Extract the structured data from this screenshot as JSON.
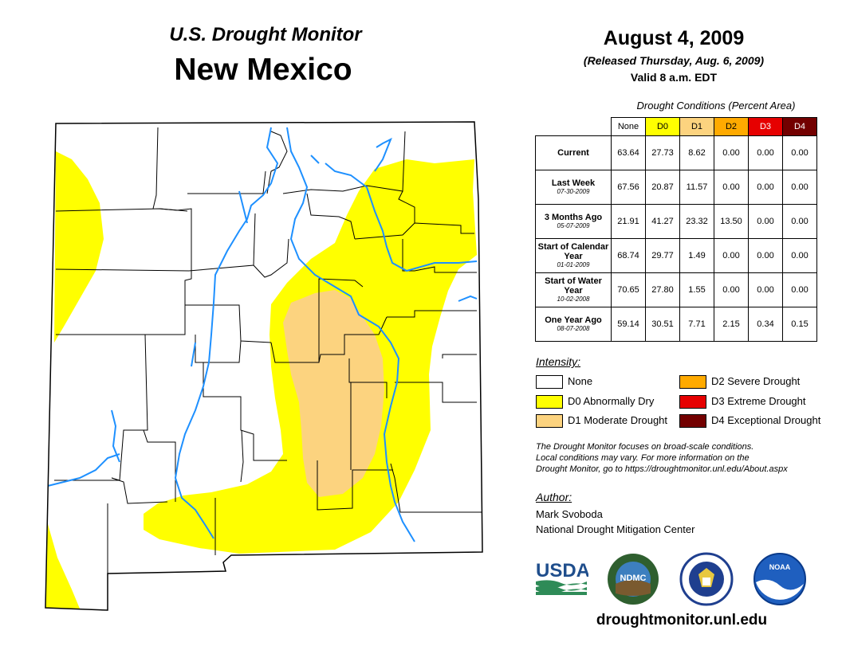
{
  "header": {
    "subtitle": "U.S. Drought Monitor",
    "state": "New Mexico",
    "date": "August 4, 2009",
    "released": "(Released Thursday, Aug. 6, 2009)",
    "valid": "Valid 8 a.m. EDT"
  },
  "table": {
    "title": "Drought Conditions (Percent Area)",
    "columns": [
      "None",
      "D0",
      "D1",
      "D2",
      "D3",
      "D4"
    ],
    "rows": [
      {
        "label": "Current",
        "date": "",
        "values": [
          "63.64",
          "27.73",
          "8.62",
          "0.00",
          "0.00",
          "0.00"
        ]
      },
      {
        "label": "Last Week",
        "date": "07-30-2009",
        "values": [
          "67.56",
          "20.87",
          "11.57",
          "0.00",
          "0.00",
          "0.00"
        ]
      },
      {
        "label": "3 Months Ago",
        "date": "05-07-2009",
        "values": [
          "21.91",
          "41.27",
          "23.32",
          "13.50",
          "0.00",
          "0.00"
        ]
      },
      {
        "label": "Start of Calendar Year",
        "date": "01-01-2009",
        "values": [
          "68.74",
          "29.77",
          "1.49",
          "0.00",
          "0.00",
          "0.00"
        ]
      },
      {
        "label": "Start of Water Year",
        "date": "10-02-2008",
        "values": [
          "70.65",
          "27.80",
          "1.55",
          "0.00",
          "0.00",
          "0.00"
        ]
      },
      {
        "label": "One Year Ago",
        "date": "08-07-2008",
        "values": [
          "59.14",
          "30.51",
          "7.71",
          "2.15",
          "0.34",
          "0.15"
        ]
      }
    ]
  },
  "legend": {
    "title": "Intensity:",
    "items": [
      {
        "label": "None",
        "color": "#ffffff"
      },
      {
        "label": "D0 Abnormally Dry",
        "color": "#ffff00"
      },
      {
        "label": "D1 Moderate Drought",
        "color": "#fcd37f"
      },
      {
        "label": "D2 Severe Drought",
        "color": "#ffaa00"
      },
      {
        "label": "D3 Extreme Drought",
        "color": "#e60000"
      },
      {
        "label": "D4 Exceptional Drought",
        "color": "#730000"
      }
    ]
  },
  "note": {
    "line1": "The Drought Monitor focuses on broad-scale conditions.",
    "line2": "Local conditions may vary. For more information on the",
    "line3": "Drought Monitor, go to https://droughtmonitor.unl.edu/About.aspx"
  },
  "author": {
    "title": "Author:",
    "name": "Mark Svoboda",
    "org": "National Drought Mitigation Center"
  },
  "logos": {
    "usda": "USDA",
    "ndmc": "NDMC",
    "noaa": "NOAA"
  },
  "website": "droughtmonitor.unl.edu",
  "colors": {
    "header_none": "#ffffff",
    "header_d0": "#ffff00",
    "header_d1": "#fcd37f",
    "header_d2": "#ffaa00",
    "header_d3": "#e60000",
    "header_d4": "#730000",
    "river": "#1e90ff"
  }
}
